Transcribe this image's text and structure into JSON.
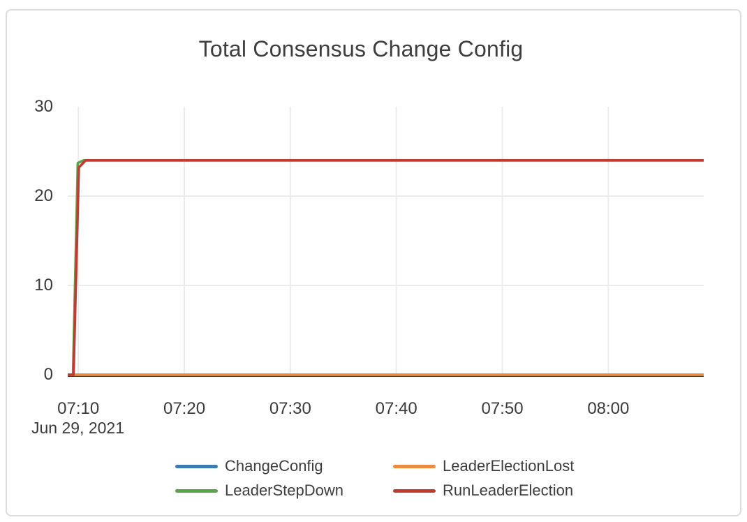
{
  "chart_data": {
    "type": "line",
    "title": "Total Consensus Change Config",
    "x_axis": {
      "date_label": "Jun 29, 2021",
      "range_minutes": [
        9,
        69
      ],
      "ticks": [
        {
          "minute": 10,
          "label": "07:10"
        },
        {
          "minute": 20,
          "label": "07:20"
        },
        {
          "minute": 30,
          "label": "07:30"
        },
        {
          "minute": 40,
          "label": "07:40"
        },
        {
          "minute": 50,
          "label": "07:50"
        },
        {
          "minute": 60,
          "label": "08:00"
        }
      ]
    },
    "y_axis": {
      "range": [
        0,
        30
      ],
      "ticks": [
        0,
        10,
        20,
        30
      ],
      "grid_ticks": [
        10,
        20
      ]
    },
    "grid_color": "#ececec",
    "axis_line_color": "#45413c",
    "series": [
      {
        "name": "ChangeConfig",
        "color": "#3d7bb1",
        "plateau_value": 0,
        "points": [
          [
            9,
            0
          ],
          [
            69,
            0
          ]
        ]
      },
      {
        "name": "LeaderElectionLost",
        "color": "#ef8b3c",
        "plateau_value": 0,
        "points": [
          [
            9,
            0
          ],
          [
            69,
            0
          ]
        ]
      },
      {
        "name": "LeaderStepDown",
        "color": "#58a446",
        "plateau_value": 24,
        "points": [
          [
            9,
            0
          ],
          [
            9.5,
            0
          ],
          [
            9.95,
            23.7
          ],
          [
            10.5,
            24
          ],
          [
            69,
            24
          ]
        ]
      },
      {
        "name": "RunLeaderElection",
        "color": "#c23a32",
        "plateau_value": 24,
        "points": [
          [
            9,
            0
          ],
          [
            9.55,
            0
          ],
          [
            10.05,
            23.2
          ],
          [
            10.7,
            24
          ],
          [
            69,
            24
          ]
        ]
      }
    ]
  }
}
